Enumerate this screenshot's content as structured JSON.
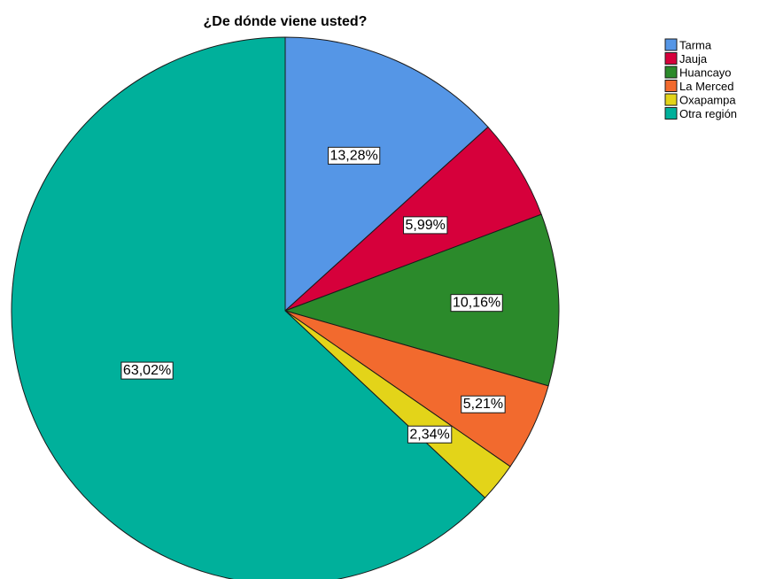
{
  "chart_data": {
    "type": "pie",
    "title": "¿De dónde viene usted?",
    "categories": [
      "Tarma",
      "Jauja",
      "Huancayo",
      "La Merced",
      "Oxapampa",
      "Otra región"
    ],
    "values": [
      13.28,
      5.99,
      10.16,
      5.21,
      2.34,
      63.02
    ],
    "data_labels": [
      "13,28%",
      "5,99%",
      "10,16%",
      "5,21%",
      "2,34%",
      "63,02%"
    ],
    "colors": [
      "#5596e6",
      "#d6003b",
      "#2b8a2b",
      "#f26a2e",
      "#e3d419",
      "#00b09b"
    ],
    "start": "top, clockwise",
    "legend": {
      "position": "top-right"
    }
  }
}
